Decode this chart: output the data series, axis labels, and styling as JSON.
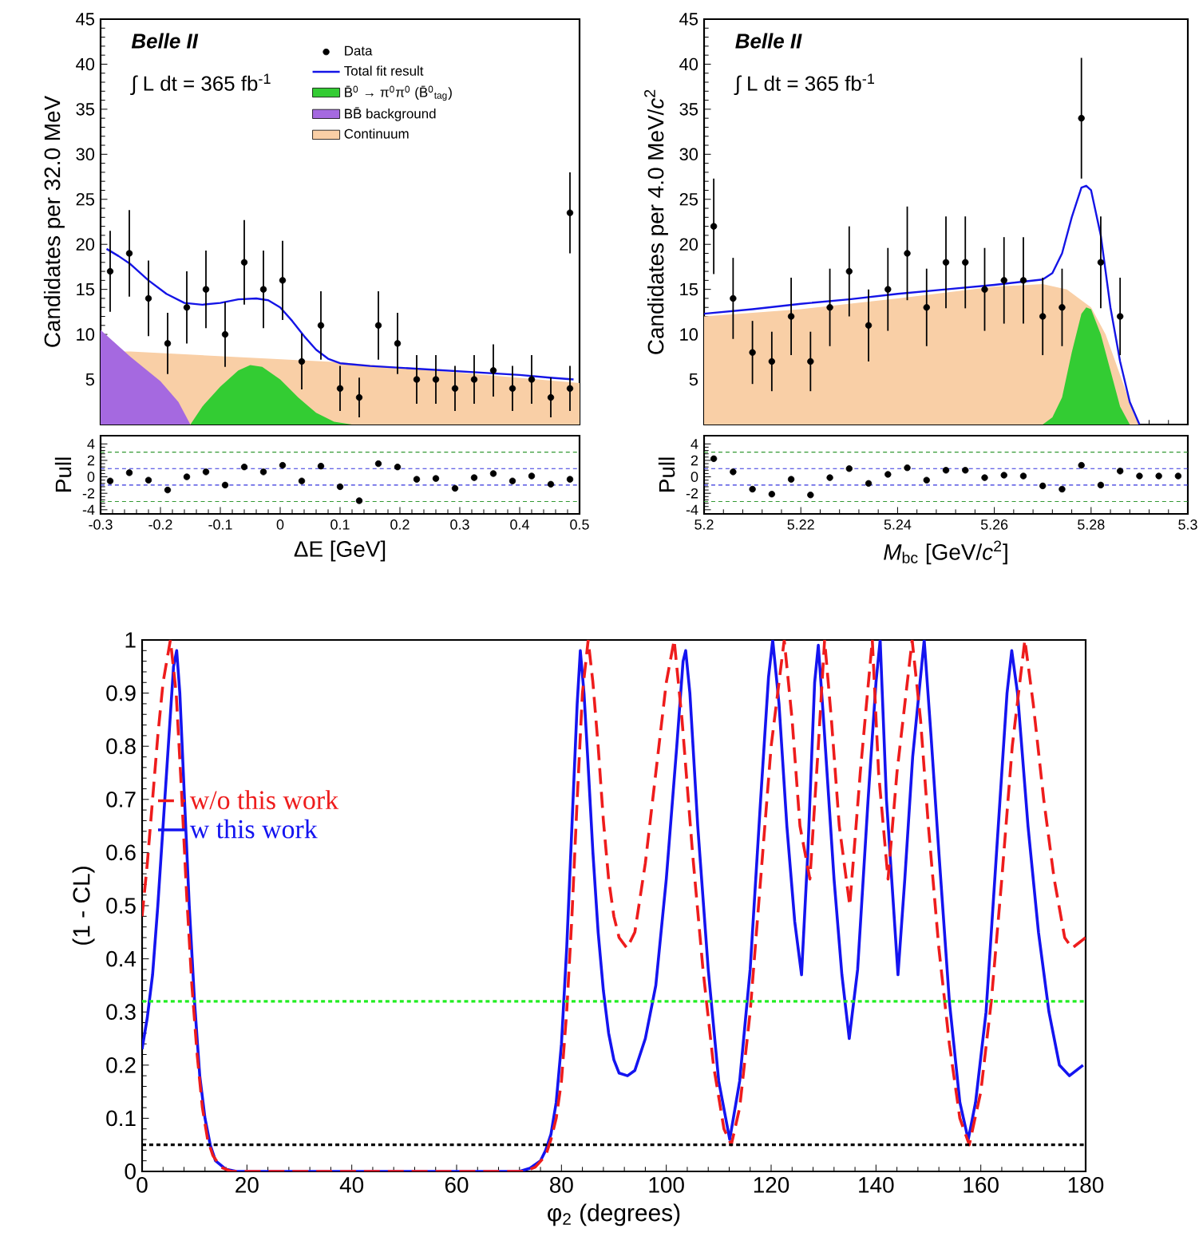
{
  "chart_data": [
    {
      "type": "scatter",
      "xlim": [
        -0.3,
        0.5
      ],
      "xticks": [
        -0.3,
        -0.2,
        -0.1,
        0,
        0.1,
        0.2,
        0.3,
        0.4,
        0.5
      ],
      "ylim": [
        0,
        45
      ],
      "yticks": [
        5,
        10,
        15,
        20,
        25,
        30,
        35,
        40,
        45
      ],
      "ylabel": "Candidates per 32.0 MeV",
      "tick_labels": "y",
      "legend": "top right",
      "annotations": [
        "Belle II",
        "∫ L dt = 365 fb$^{-1}$"
      ],
      "series": [
        {
          "name": "Data",
          "type": "scatter",
          "marker": "circle",
          "color": "#000000",
          "x": [
            -0.284,
            -0.252,
            -0.22,
            -0.188,
            -0.156,
            -0.124,
            -0.092,
            -0.06,
            -0.028,
            0.004,
            0.036,
            0.068,
            0.1,
            0.132,
            0.164,
            0.196,
            0.228,
            0.26,
            0.292,
            0.324,
            0.356,
            0.388,
            0.42,
            0.452,
            0.484,
            0.484
          ],
          "values": [
            17,
            19,
            14,
            9,
            13,
            15,
            10,
            18,
            15,
            16,
            7,
            11,
            4,
            3,
            11,
            9,
            5,
            5,
            4,
            5,
            6,
            4,
            5,
            3,
            4,
            23.5
          ],
          "errors": [
            4.5,
            4.8,
            4.2,
            3.4,
            4,
            4.3,
            3.6,
            4.7,
            4.3,
            4.4,
            3.1,
            3.8,
            2.5,
            2.2,
            3.8,
            3.4,
            2.7,
            2.7,
            2.5,
            2.7,
            2.9,
            2.5,
            2.7,
            2.2,
            2.5,
            4.5
          ]
        },
        {
          "name": "Total fit result",
          "type": "line",
          "color": "#1414e6",
          "x": [
            -0.29,
            -0.27,
            -0.25,
            -0.22,
            -0.19,
            -0.16,
            -0.13,
            -0.1,
            -0.07,
            -0.04,
            -0.02,
            0,
            0.02,
            0.04,
            0.06,
            0.08,
            0.1,
            0.15,
            0.2,
            0.25,
            0.3,
            0.35,
            0.4,
            0.45,
            0.49
          ],
          "values": [
            19.5,
            18.7,
            17.8,
            16,
            14.5,
            13.5,
            13.3,
            13.5,
            13.9,
            14,
            13.8,
            13,
            11.5,
            9.8,
            8.3,
            7.3,
            6.8,
            6.5,
            6.3,
            6.1,
            5.9,
            5.7,
            5.5,
            5.2,
            5
          ]
        },
        {
          "name": "B̄$^{0}$ → π$^{0}$π$^{0}$ (B̄$^{0}$$_{tag}$)",
          "type": "area",
          "color": "#33cc33",
          "x": [
            -0.15,
            -0.13,
            -0.1,
            -0.07,
            -0.05,
            -0.03,
            0,
            0.03,
            0.06,
            0.09,
            0.12
          ],
          "values": [
            0,
            2,
            4.2,
            6,
            6.6,
            6.4,
            5,
            3,
            1.3,
            0.3,
            0
          ]
        },
        {
          "name": "BB̄ background",
          "type": "area",
          "color": "#a569e0",
          "x": [
            -0.3,
            -0.25,
            -0.2,
            -0.17,
            -0.15
          ],
          "values": [
            10.5,
            7.5,
            4.8,
            2.5,
            0
          ]
        },
        {
          "name": "Continuum",
          "type": "area",
          "color": "#f9cfa6",
          "x": [
            -0.3,
            -0.25,
            0.1,
            0.5
          ],
          "values": [
            8.1,
            8.1,
            6.9,
            4.6
          ]
        }
      ]
    },
    {
      "type": "scatter",
      "marker": "circle",
      "xlim": [
        -0.3,
        0.5
      ],
      "xticks": [
        -0.3,
        -0.2,
        -0.1,
        0,
        0.1,
        0.2,
        0.3,
        0.4,
        0.5
      ],
      "ylim": [
        -4.5,
        5
      ],
      "yticks": [
        -4,
        -2,
        0,
        2,
        4
      ],
      "xlabel": "ΔE [GeV]",
      "ylabel": "Pull",
      "ref_lines": [
        {
          "axis": "y",
          "value": 1,
          "color": "#3333dd",
          "line_style": "dotted"
        },
        {
          "axis": "y",
          "value": -1,
          "color": "#3333dd",
          "line_style": "dotted"
        },
        {
          "axis": "y",
          "value": 3,
          "color": "#339933",
          "line_style": "dotted"
        },
        {
          "axis": "y",
          "value": -3,
          "color": "#339933",
          "line_style": "dotted"
        }
      ],
      "series": [
        {
          "color": "#000000",
          "x": [
            -0.284,
            -0.252,
            -0.22,
            -0.188,
            -0.156,
            -0.124,
            -0.092,
            -0.06,
            -0.028,
            0.004,
            0.036,
            0.068,
            0.1,
            0.132,
            0.164,
            0.196,
            0.228,
            0.26,
            0.292,
            0.324,
            0.356,
            0.388,
            0.42,
            0.452,
            0.484
          ],
          "values": [
            -0.5,
            0.5,
            -0.4,
            -1.6,
            0,
            0.6,
            -1,
            1.2,
            0.6,
            1.4,
            -0.5,
            1.3,
            -1.2,
            -2.9,
            1.6,
            1.2,
            -0.3,
            -0.2,
            -1.4,
            -0.1,
            0.4,
            -0.5,
            0.1,
            -0.9,
            -0.3
          ]
        }
      ]
    },
    {
      "type": "scatter",
      "xlim": [
        5.2,
        5.3
      ],
      "xticks": [
        5.2,
        5.22,
        5.24,
        5.26,
        5.28,
        5.3
      ],
      "ylim": [
        0,
        45
      ],
      "yticks": [
        5,
        10,
        15,
        20,
        25,
        30,
        35,
        40,
        45
      ],
      "ylabel": "Candidates per 4.0 MeV/*c*$^{2}$",
      "tick_labels": "y",
      "annotations": [
        "Belle II",
        "∫ L dt = 365 fb$^{-1}$"
      ],
      "series": [
        {
          "type": "scatter",
          "marker": "circle",
          "color": "#000000",
          "x": [
            5.202,
            5.206,
            5.21,
            5.214,
            5.218,
            5.222,
            5.226,
            5.23,
            5.234,
            5.238,
            5.242,
            5.246,
            5.25,
            5.254,
            5.258,
            5.262,
            5.266,
            5.27,
            5.274,
            5.278,
            5.282,
            5.286
          ],
          "values": [
            22,
            14,
            8,
            7,
            12,
            7,
            13,
            17,
            11,
            15,
            19,
            13,
            18,
            18,
            15,
            16,
            16,
            12,
            13,
            34,
            18,
            12
          ],
          "errors": [
            5.3,
            4.5,
            3.5,
            3.3,
            4.3,
            3.3,
            4.3,
            5,
            4,
            4.6,
            5.2,
            4.3,
            5.1,
            5.1,
            4.6,
            4.8,
            4.8,
            4.3,
            4.3,
            6.7,
            5.1,
            4.3
          ]
        },
        {
          "type": "line",
          "color": "#1414e6",
          "x": [
            5.2,
            5.21,
            5.22,
            5.23,
            5.24,
            5.25,
            5.26,
            5.27,
            5.272,
            5.274,
            5.276,
            5.278,
            5.279,
            5.28,
            5.282,
            5.284,
            5.286,
            5.288,
            5.29
          ],
          "values": [
            12.3,
            12.8,
            13.4,
            13.9,
            14.5,
            15,
            15.5,
            16.1,
            16.8,
            19,
            23,
            26.3,
            26.5,
            26,
            21,
            13,
            7,
            2.5,
            0
          ]
        },
        {
          "type": "area",
          "color": "#33cc33",
          "x": [
            5.27,
            5.272,
            5.274,
            5.276,
            5.278,
            5.279,
            5.28,
            5.282,
            5.284,
            5.286,
            5.288
          ],
          "values": [
            0,
            0.8,
            3,
            8,
            12.3,
            13,
            12.8,
            10,
            6,
            2,
            0
          ]
        },
        {
          "type": "area",
          "color": "#f9cfa6",
          "x": [
            5.2,
            5.22,
            5.24,
            5.26,
            5.27,
            5.275,
            5.28,
            5.283,
            5.286,
            5.289,
            5.29
          ],
          "values": [
            12,
            12.8,
            14,
            15.3,
            15.6,
            15,
            13,
            10,
            5.5,
            1,
            0
          ]
        }
      ]
    },
    {
      "type": "scatter",
      "marker": "circle",
      "xlim": [
        5.2,
        5.3
      ],
      "xticks": [
        5.2,
        5.22,
        5.24,
        5.26,
        5.28,
        5.3
      ],
      "ylim": [
        -4.5,
        5
      ],
      "yticks": [
        -4,
        -2,
        0,
        2,
        4
      ],
      "xlabel": "*M*$_{bc}$ [GeV/*c*$^{2}$]",
      "ylabel": "Pull",
      "ref_lines": [
        {
          "axis": "y",
          "value": 1,
          "color": "#3333dd",
          "line_style": "dotted"
        },
        {
          "axis": "y",
          "value": -1,
          "color": "#3333dd",
          "line_style": "dotted"
        },
        {
          "axis": "y",
          "value": 3,
          "color": "#339933",
          "line_style": "dotted"
        },
        {
          "axis": "y",
          "value": -3,
          "color": "#339933",
          "line_style": "dotted"
        }
      ],
      "series": [
        {
          "color": "#000000",
          "x": [
            5.202,
            5.206,
            5.21,
            5.214,
            5.218,
            5.222,
            5.226,
            5.23,
            5.234,
            5.238,
            5.242,
            5.246,
            5.25,
            5.254,
            5.258,
            5.262,
            5.266,
            5.27,
            5.274,
            5.278,
            5.282,
            5.286,
            5.29,
            5.294,
            5.298
          ],
          "values": [
            2.2,
            0.6,
            -1.5,
            -2.1,
            -0.3,
            -2.2,
            -0.1,
            1,
            -0.8,
            0.3,
            1.1,
            -0.4,
            0.8,
            0.8,
            -0.1,
            0.2,
            0.1,
            -1.1,
            -1.5,
            1.4,
            -1,
            0.7,
            0.1,
            0.1,
            0.1
          ]
        }
      ]
    },
    {
      "type": "line",
      "xlim": [
        0,
        180
      ],
      "xticks": [
        0,
        20,
        40,
        60,
        80,
        100,
        120,
        140,
        160,
        180
      ],
      "ylim": [
        0,
        1
      ],
      "yticks": [
        0,
        0.1,
        0.2,
        0.3,
        0.4,
        0.5,
        0.6,
        0.7,
        0.8,
        0.9,
        1
      ],
      "xlabel": "φ$_{2}$ (degrees)",
      "ylabel": "(1 - CL)",
      "legend": "left",
      "ref_lines": [
        {
          "axis": "y",
          "value": 0.32,
          "color": "#22ee22",
          "line_style": "dotted"
        },
        {
          "axis": "y",
          "value": 0.05,
          "color": "#000000",
          "line_style": "dotted"
        }
      ],
      "series": [
        {
          "name": "w/o this work",
          "color": "#ee1c1c",
          "line_style": "dashed",
          "x": [
            0,
            1,
            2,
            3,
            4,
            5.4,
            6.5,
            7.5,
            8.5,
            9.5,
            10.5,
            11.5,
            12.5,
            13.5,
            15,
            17,
            73,
            75,
            77,
            78,
            79,
            80,
            81,
            82,
            83,
            84,
            85.1,
            86,
            87,
            88,
            89,
            90,
            91,
            92.5,
            94,
            96,
            98,
            100,
            101.5,
            103,
            105,
            107,
            109,
            111,
            112.4,
            114,
            116,
            118,
            120,
            122.5,
            124,
            125.5,
            127.4,
            129,
            130.2,
            131.5,
            133,
            135,
            137,
            139.3,
            140.5,
            142.3,
            144,
            146.9,
            148.5,
            150,
            152,
            154,
            156,
            157.8,
            160,
            162,
            164,
            166,
            168.4,
            170,
            172,
            174,
            176,
            177.4,
            180
          ],
          "values": [
            0.48,
            0.58,
            0.7,
            0.82,
            0.92,
            1.0,
            0.9,
            0.72,
            0.52,
            0.35,
            0.22,
            0.12,
            0.06,
            0.03,
            0.008,
            0,
            0,
            0.008,
            0.03,
            0.06,
            0.1,
            0.17,
            0.3,
            0.48,
            0.7,
            0.9,
            1.0,
            0.92,
            0.8,
            0.66,
            0.55,
            0.48,
            0.44,
            0.42,
            0.45,
            0.58,
            0.75,
            0.92,
            1.0,
            0.85,
            0.6,
            0.38,
            0.2,
            0.08,
            0.05,
            0.12,
            0.3,
            0.55,
            0.8,
            1.0,
            0.85,
            0.65,
            0.55,
            0.8,
            1.0,
            0.85,
            0.65,
            0.5,
            0.75,
            1.0,
            0.75,
            0.55,
            0.75,
            1.0,
            0.85,
            0.65,
            0.42,
            0.24,
            0.1,
            0.05,
            0.15,
            0.32,
            0.55,
            0.8,
            1.0,
            0.88,
            0.7,
            0.55,
            0.44,
            0.42,
            0.44
          ]
        },
        {
          "name": "w this work",
          "color": "#1414f0",
          "line_style": "solid",
          "x": [
            0,
            1,
            2,
            3,
            4,
            5,
            6,
            6.6,
            7.2,
            8,
            9,
            10,
            11,
            12,
            13,
            14,
            16,
            18,
            72,
            74,
            76,
            77,
            78,
            79,
            80,
            81,
            82,
            83,
            83.6,
            84.3,
            85,
            86,
            87,
            88,
            89,
            90,
            91,
            92.6,
            94,
            96,
            98,
            100,
            102,
            103.2,
            103.7,
            104.5,
            106,
            108,
            110,
            112.1,
            114,
            116,
            118,
            119.5,
            120.3,
            121.5,
            123,
            124.5,
            125.8,
            127,
            128.3,
            129,
            130,
            132,
            133.5,
            134.9,
            136.5,
            138.5,
            140,
            140.8,
            142,
            144.2,
            145.5,
            147,
            148.5,
            149.2,
            150.5,
            152,
            154,
            156,
            157.6,
            159,
            161,
            163,
            165,
            165.9,
            167,
            169,
            171,
            173,
            175,
            176.9,
            179.5
          ],
          "values": [
            0.23,
            0.29,
            0.37,
            0.5,
            0.65,
            0.8,
            0.95,
            0.98,
            0.9,
            0.72,
            0.5,
            0.32,
            0.18,
            0.1,
            0.05,
            0.02,
            0.004,
            0,
            0,
            0.006,
            0.02,
            0.04,
            0.07,
            0.13,
            0.24,
            0.42,
            0.65,
            0.88,
            0.98,
            0.9,
            0.78,
            0.6,
            0.45,
            0.34,
            0.26,
            0.21,
            0.185,
            0.18,
            0.19,
            0.25,
            0.35,
            0.55,
            0.8,
            0.96,
            0.98,
            0.9,
            0.65,
            0.38,
            0.17,
            0.06,
            0.17,
            0.38,
            0.7,
            0.93,
            1.0,
            0.88,
            0.65,
            0.47,
            0.37,
            0.6,
            0.92,
            0.99,
            0.85,
            0.55,
            0.37,
            0.25,
            0.38,
            0.7,
            0.92,
            1.0,
            0.7,
            0.37,
            0.55,
            0.78,
            0.93,
            1.0,
            0.82,
            0.6,
            0.32,
            0.13,
            0.06,
            0.13,
            0.3,
            0.6,
            0.9,
            0.98,
            0.9,
            0.65,
            0.45,
            0.3,
            0.2,
            0.18,
            0.2
          ]
        }
      ]
    }
  ]
}
